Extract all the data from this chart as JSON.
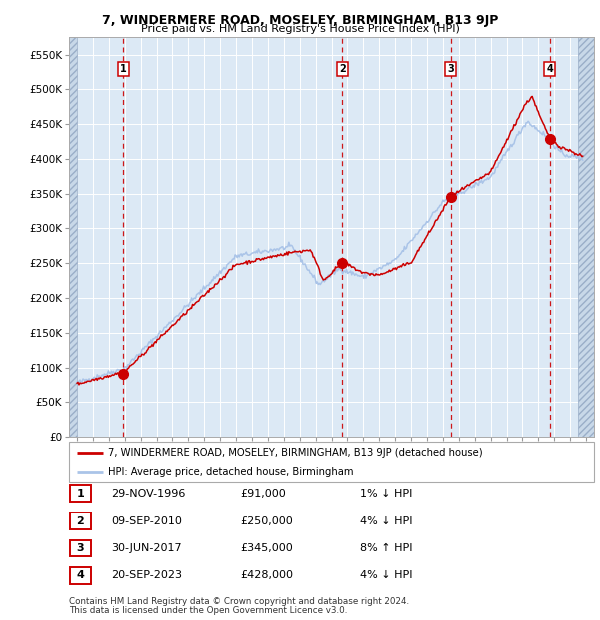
{
  "title": "7, WINDERMERE ROAD, MOSELEY, BIRMINGHAM, B13 9JP",
  "subtitle": "Price paid vs. HM Land Registry's House Price Index (HPI)",
  "sale_dates_float": [
    1996.913,
    2010.688,
    2017.496,
    2023.721
  ],
  "sale_prices": [
    91000,
    250000,
    345000,
    428000
  ],
  "sale_labels": [
    "1",
    "2",
    "3",
    "4"
  ],
  "sale_info": [
    [
      "1",
      "29-NOV-1996",
      "£91,000",
      "1% ↓ HPI"
    ],
    [
      "2",
      "09-SEP-2010",
      "£250,000",
      "4% ↓ HPI"
    ],
    [
      "3",
      "30-JUN-2017",
      "£345,000",
      "8% ↑ HPI"
    ],
    [
      "4",
      "20-SEP-2023",
      "£428,000",
      "4% ↓ HPI"
    ]
  ],
  "legend_line1": "7, WINDERMERE ROAD, MOSELEY, BIRMINGHAM, B13 9JP (detached house)",
  "legend_line2": "HPI: Average price, detached house, Birmingham",
  "footer1": "Contains HM Land Registry data © Crown copyright and database right 2024.",
  "footer2": "This data is licensed under the Open Government Licence v3.0.",
  "hpi_color": "#aac4e8",
  "price_color": "#cc0000",
  "marker_color": "#cc0000",
  "vline_color": "#cc0000",
  "plot_area_color": "#dce9f5",
  "grid_color": "#ffffff",
  "ylim_max": 575000,
  "ytick_vals": [
    0,
    50000,
    100000,
    150000,
    200000,
    250000,
    300000,
    350000,
    400000,
    450000,
    500000,
    550000
  ],
  "ytick_labels": [
    "£0",
    "£50K",
    "£100K",
    "£150K",
    "£200K",
    "£250K",
    "£300K",
    "£350K",
    "£400K",
    "£450K",
    "£500K",
    "£550K"
  ],
  "xlim_start": 1993.5,
  "xlim_end": 2026.5,
  "hatch_right_start": 2025.5
}
